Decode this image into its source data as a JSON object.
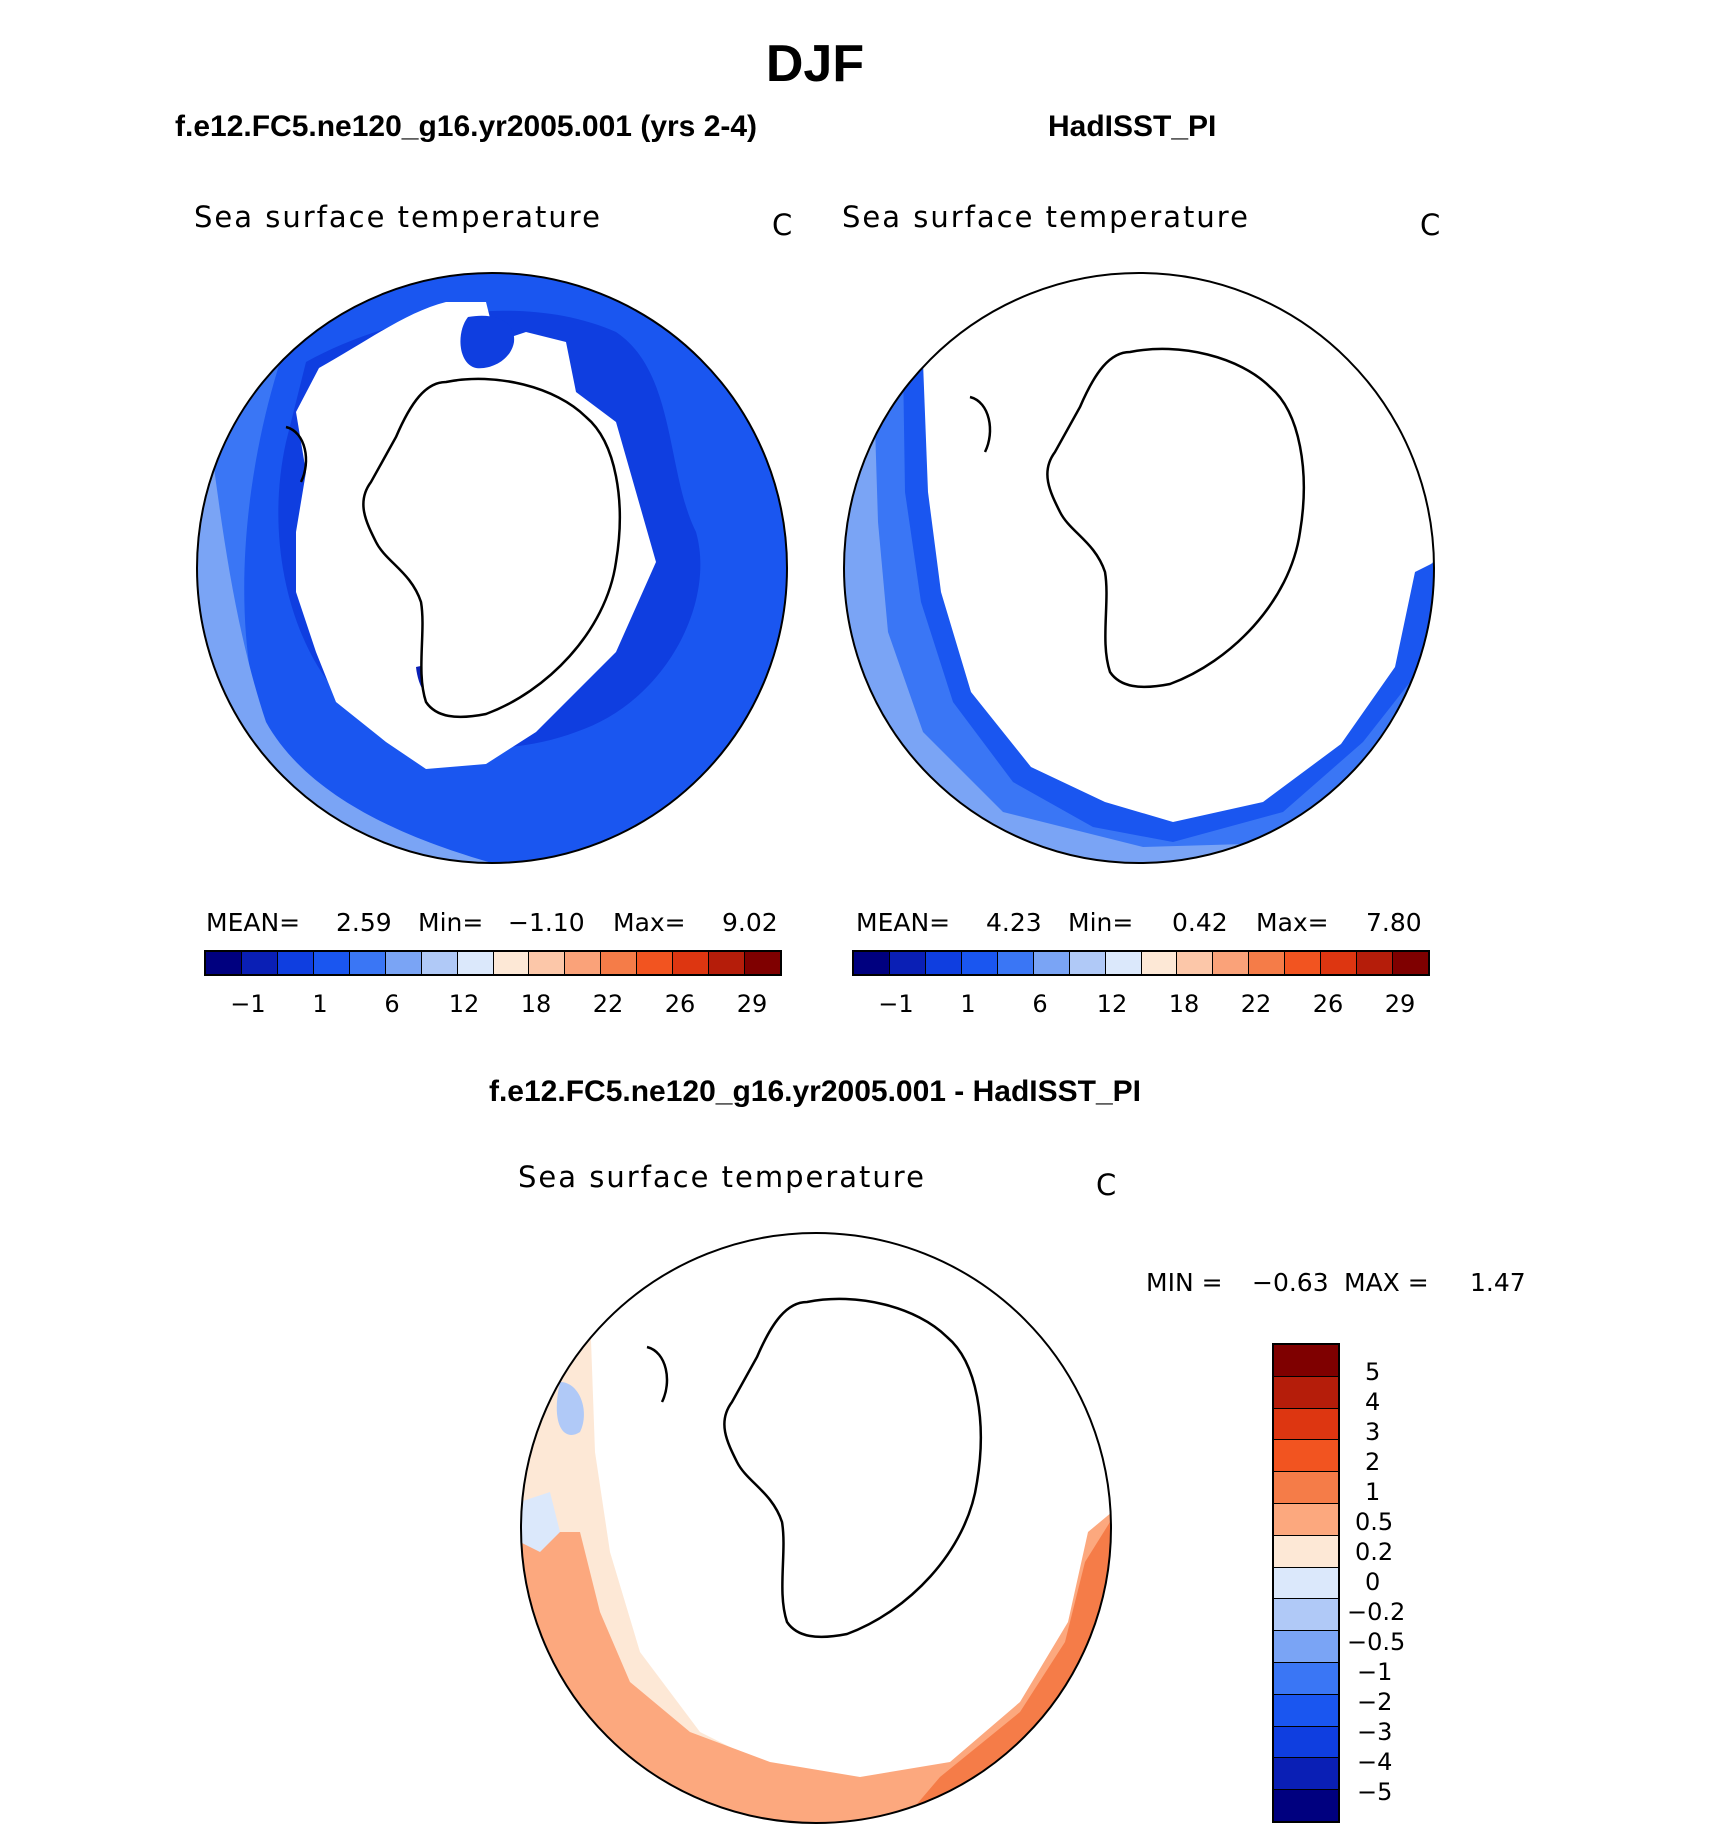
{
  "title": "DJF",
  "panels": [
    {
      "case_name": "f.e12.FC5.ne120_g16.yr2005.001 (yrs 2-4)",
      "variable": "Sea surface temperature",
      "units": "C",
      "stats": {
        "mean_label": "MEAN=",
        "mean": "2.59",
        "min_label": "Min=",
        "min": "−1.10",
        "max_label": "Max=",
        "max": "9.02"
      }
    },
    {
      "case_name": "HadISST_PI",
      "variable": "Sea surface temperature",
      "units": "C",
      "stats": {
        "mean_label": "MEAN=",
        "mean": "4.23",
        "min_label": "Min=",
        "min": "0.42",
        "max_label": "Max=",
        "max": "7.80"
      }
    }
  ],
  "colorbar": {
    "colors": [
      "#00007f",
      "#0a1fb5",
      "#0f3ee0",
      "#1a56f0",
      "#3a76f5",
      "#7aa4f5",
      "#b0c9f7",
      "#dbe8fb",
      "#fde8d6",
      "#fcc7a9",
      "#faa279",
      "#f57c48",
      "#f25420",
      "#dd3611",
      "#b51d0a",
      "#7f0000"
    ],
    "tick_labels": [
      "−1",
      "1",
      "6",
      "12",
      "18",
      "22",
      "26",
      "29"
    ]
  },
  "difference": {
    "title": "f.e12.FC5.ne120_g16.yr2005.001 - HadISST_PI",
    "variable": "Sea surface temperature",
    "units": "C",
    "stats": {
      "min_label": "MIN =",
      "min": "−0.63",
      "max_label": "MAX =",
      "max": "1.47"
    },
    "colorbar": {
      "colors": [
        "#7f0000",
        "#b51d0a",
        "#dd3611",
        "#f25420",
        "#f57c48",
        "#fca87e",
        "#fde8d6",
        "#dbe8fb",
        "#b0c9f7",
        "#7aa4f5",
        "#3a76f5",
        "#1a56f0",
        "#0f3ee0",
        "#0a1fb5",
        "#00007f"
      ],
      "tick_labels": [
        "5",
        "4",
        "3",
        "2",
        "1",
        "0.5",
        "0.2",
        "0",
        "−0.2",
        "−0.5",
        "−1",
        "−2",
        "−3",
        "−4",
        "−5"
      ]
    }
  }
}
